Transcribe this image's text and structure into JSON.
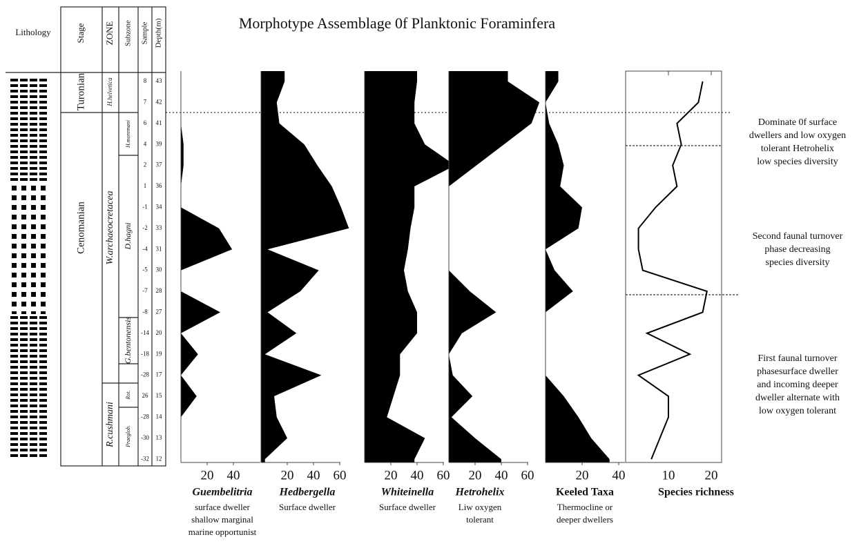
{
  "title": "Morphotype Assemblage 0f Planktonic Foraminfera",
  "column_headers": [
    "Lithology",
    "Stage",
    "ZONE",
    "Subzone",
    "Sample",
    "Depth(m)"
  ],
  "stages": [
    "Turonian",
    "Cenomanian"
  ],
  "zones": [
    "H.helvetica",
    "W.archaeocretacea",
    "R.cushmani"
  ],
  "subzones": [
    "H.moremani",
    "D.hagni",
    "G.bentonensis",
    "Rot.",
    "Praeglob."
  ],
  "samples": [
    "8",
    "7",
    "6",
    "4",
    "2",
    "1",
    "-1",
    "-2",
    "-4",
    "-5",
    "-7",
    "-8",
    "-14",
    "-18",
    "-28",
    "26",
    "-28",
    "-30",
    "-32"
  ],
  "depths": [
    43,
    42,
    41,
    39,
    37,
    36,
    34,
    33,
    31,
    30,
    28,
    27,
    20,
    19,
    17,
    15,
    14,
    13,
    12
  ],
  "chart_data": [
    {
      "type": "area",
      "name": "Guembelitria",
      "description": [
        "surface dweller",
        "shallow marginal",
        "marine opportunist"
      ],
      "color": "#000000",
      "values": [
        0,
        0,
        0,
        2,
        2,
        0,
        0,
        29,
        39,
        0,
        0,
        30,
        0,
        13,
        0,
        12,
        0,
        0,
        0
      ],
      "xticks": [
        20,
        40
      ]
    },
    {
      "type": "area",
      "name": "Hedbergella",
      "description": [
        "Surface dweller"
      ],
      "color": "#000000",
      "values": [
        18,
        12,
        14,
        33,
        43,
        54,
        61,
        67,
        5,
        44,
        30,
        5,
        27,
        3,
        46,
        10,
        12,
        20,
        3
      ],
      "xticks": [
        20,
        40,
        60
      ]
    },
    {
      "type": "area",
      "name": "Whiteinella",
      "description": [
        "Surface dweller"
      ],
      "color": "#000000",
      "values": [
        40,
        38,
        38,
        46,
        69,
        38,
        38,
        35,
        33,
        30,
        33,
        40,
        40,
        27,
        27,
        22,
        17,
        46,
        38
      ],
      "xticks": [
        20,
        40,
        60
      ]
    },
    {
      "type": "area",
      "name": "Hetrohelix",
      "description": [
        "Liw oxygen",
        "tolerant"
      ],
      "color": "#000000",
      "values": [
        45,
        69,
        63,
        42,
        21,
        0,
        0,
        0,
        0,
        0,
        16,
        36,
        10,
        0,
        3,
        18,
        2,
        20,
        40
      ],
      "xticks": [
        20,
        40,
        60
      ]
    },
    {
      "type": "area",
      "name": "Keeled Taxa",
      "description": [
        "Thermocline or",
        "deeper dwellers"
      ],
      "color": "#000000",
      "values": [
        7,
        0,
        2,
        7,
        10,
        8,
        20,
        18,
        0,
        5,
        15,
        0,
        0,
        0,
        0,
        10,
        18,
        25,
        35
      ],
      "xticks": [
        20,
        40
      ]
    },
    {
      "type": "line",
      "name": "Species richness",
      "description": [],
      "color": "#000000",
      "values": [
        18,
        17,
        12,
        13,
        11,
        12,
        7,
        3,
        3,
        4,
        19,
        18,
        5,
        15,
        3,
        10,
        10,
        8,
        6
      ],
      "xticks": [
        10,
        20
      ]
    }
  ],
  "annotations": [
    [
      "Dominate 0f surface",
      "dwellers and low oxygen",
      "tolerant Hetrohelix",
      "low species diversity"
    ],
    [
      "Second faunal turnover",
      "phase decreasing",
      "species diversity"
    ],
    [
      "First faunal turnover",
      "phasesurface dweller",
      "and incoming  deeper",
      "dweller alternate with",
      "low oxygen tolerant"
    ]
  ]
}
